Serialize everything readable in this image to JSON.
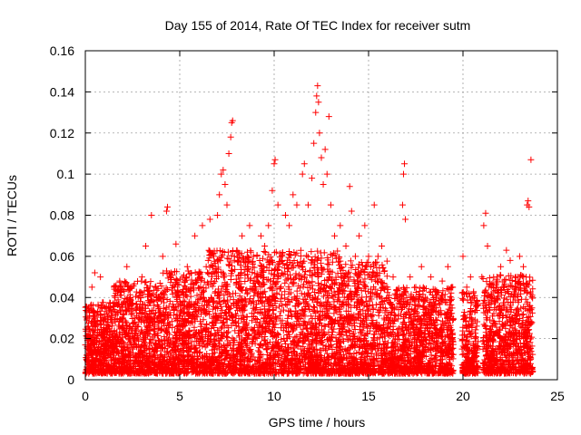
{
  "chart_data": {
    "type": "scatter",
    "title": "Day 155 of 2014, Rate Of TEC Index for receiver sutm",
    "xlabel": "GPS time / hours",
    "ylabel": "ROTI / TECUs",
    "xlim": [
      0,
      25
    ],
    "ylim": [
      0,
      0.16
    ],
    "x_ticks": [
      0,
      5,
      10,
      15,
      20,
      25
    ],
    "x_tick_labels": [
      "0",
      "5",
      "10",
      "15",
      "20",
      "25"
    ],
    "y_ticks": [
      0,
      0.02,
      0.04,
      0.06,
      0.08,
      0.1,
      0.12,
      0.14,
      0.16
    ],
    "y_tick_labels": [
      "0",
      "0.02",
      "0.04",
      "0.06",
      "0.08",
      "0.1",
      "0.12",
      "0.14",
      "0.16"
    ],
    "grid": true,
    "marker": "+",
    "color": "#ff0000",
    "series": [
      {
        "name": "ROTI",
        "points": [
          [
            0.1,
            0.012
          ],
          [
            0.2,
            0.03
          ],
          [
            0.35,
            0.045
          ],
          [
            0.5,
            0.052
          ],
          [
            0.6,
            0.02
          ],
          [
            0.8,
            0.05
          ],
          [
            1.0,
            0.015
          ],
          [
            1.2,
            0.028
          ],
          [
            1.5,
            0.01
          ],
          [
            1.8,
            0.022
          ],
          [
            2.0,
            0.03
          ],
          [
            2.2,
            0.055
          ],
          [
            2.4,
            0.045
          ],
          [
            2.6,
            0.02
          ],
          [
            2.8,
            0.04
          ],
          [
            3.0,
            0.05
          ],
          [
            3.2,
            0.065
          ],
          [
            3.4,
            0.03
          ],
          [
            3.5,
            0.08
          ],
          [
            3.7,
            0.045
          ],
          [
            3.9,
            0.025
          ],
          [
            4.1,
            0.06
          ],
          [
            4.3,
            0.082
          ],
          [
            4.35,
            0.084
          ],
          [
            4.5,
            0.05
          ],
          [
            4.7,
            0.035
          ],
          [
            4.8,
            0.066
          ],
          [
            5.0,
            0.04
          ],
          [
            5.2,
            0.02
          ],
          [
            5.4,
            0.055
          ],
          [
            5.6,
            0.045
          ],
          [
            5.8,
            0.07
          ],
          [
            6.0,
            0.035
          ],
          [
            6.2,
            0.075
          ],
          [
            6.4,
            0.055
          ],
          [
            6.6,
            0.078
          ],
          [
            6.8,
            0.06
          ],
          [
            7.0,
            0.08
          ],
          [
            7.1,
            0.09
          ],
          [
            7.2,
            0.1
          ],
          [
            7.3,
            0.102
          ],
          [
            7.4,
            0.095
          ],
          [
            7.5,
            0.085
          ],
          [
            7.6,
            0.11
          ],
          [
            7.7,
            0.118
          ],
          [
            7.75,
            0.125
          ],
          [
            7.8,
            0.126
          ],
          [
            7.9,
            0.06
          ],
          [
            8.1,
            0.045
          ],
          [
            8.3,
            0.07
          ],
          [
            8.5,
            0.055
          ],
          [
            8.7,
            0.075
          ],
          [
            8.9,
            0.06
          ],
          [
            9.1,
            0.05
          ],
          [
            9.3,
            0.07
          ],
          [
            9.5,
            0.065
          ],
          [
            9.7,
            0.075
          ],
          [
            9.9,
            0.092
          ],
          [
            10.0,
            0.105
          ],
          [
            10.05,
            0.107
          ],
          [
            10.2,
            0.085
          ],
          [
            10.4,
            0.06
          ],
          [
            10.6,
            0.08
          ],
          [
            10.8,
            0.075
          ],
          [
            11.0,
            0.09
          ],
          [
            11.2,
            0.085
          ],
          [
            11.5,
            0.1
          ],
          [
            11.6,
            0.105
          ],
          [
            11.8,
            0.085
          ],
          [
            12.0,
            0.098
          ],
          [
            12.1,
            0.115
          ],
          [
            12.2,
            0.13
          ],
          [
            12.25,
            0.138
          ],
          [
            12.3,
            0.143
          ],
          [
            12.35,
            0.135
          ],
          [
            12.4,
            0.12
          ],
          [
            12.5,
            0.108
          ],
          [
            12.6,
            0.095
          ],
          [
            12.7,
            0.112
          ],
          [
            12.8,
            0.1
          ],
          [
            12.9,
            0.128
          ],
          [
            13.0,
            0.085
          ],
          [
            13.2,
            0.07
          ],
          [
            13.5,
            0.075
          ],
          [
            13.8,
            0.065
          ],
          [
            14.0,
            0.094
          ],
          [
            14.1,
            0.082
          ],
          [
            14.3,
            0.06
          ],
          [
            14.5,
            0.07
          ],
          [
            14.8,
            0.075
          ],
          [
            15.0,
            0.06
          ],
          [
            15.3,
            0.085
          ],
          [
            15.5,
            0.06
          ],
          [
            15.7,
            0.065
          ],
          [
            16.0,
            0.045
          ],
          [
            16.3,
            0.05
          ],
          [
            16.5,
            0.04
          ],
          [
            16.8,
            0.085
          ],
          [
            16.85,
            0.1
          ],
          [
            16.9,
            0.105
          ],
          [
            16.95,
            0.078
          ],
          [
            17.2,
            0.05
          ],
          [
            17.5,
            0.045
          ],
          [
            17.8,
            0.055
          ],
          [
            18.0,
            0.04
          ],
          [
            18.3,
            0.05
          ],
          [
            18.6,
            0.035
          ],
          [
            18.9,
            0.048
          ],
          [
            19.2,
            0.055
          ],
          [
            19.4,
            0.045
          ],
          [
            20.0,
            0.06
          ],
          [
            20.2,
            0.045
          ],
          [
            20.4,
            0.05
          ],
          [
            20.6,
            0.04
          ],
          [
            21.0,
            0.05
          ],
          [
            21.1,
            0.075
          ],
          [
            21.2,
            0.081
          ],
          [
            21.3,
            0.065
          ],
          [
            21.5,
            0.045
          ],
          [
            21.8,
            0.05
          ],
          [
            22.0,
            0.055
          ],
          [
            22.3,
            0.063
          ],
          [
            22.5,
            0.058
          ],
          [
            22.8,
            0.05
          ],
          [
            23.0,
            0.06
          ],
          [
            23.2,
            0.055
          ],
          [
            23.4,
            0.085
          ],
          [
            23.45,
            0.087
          ],
          [
            23.5,
            0.084
          ],
          [
            23.6,
            0.107
          ]
        ]
      }
    ]
  }
}
